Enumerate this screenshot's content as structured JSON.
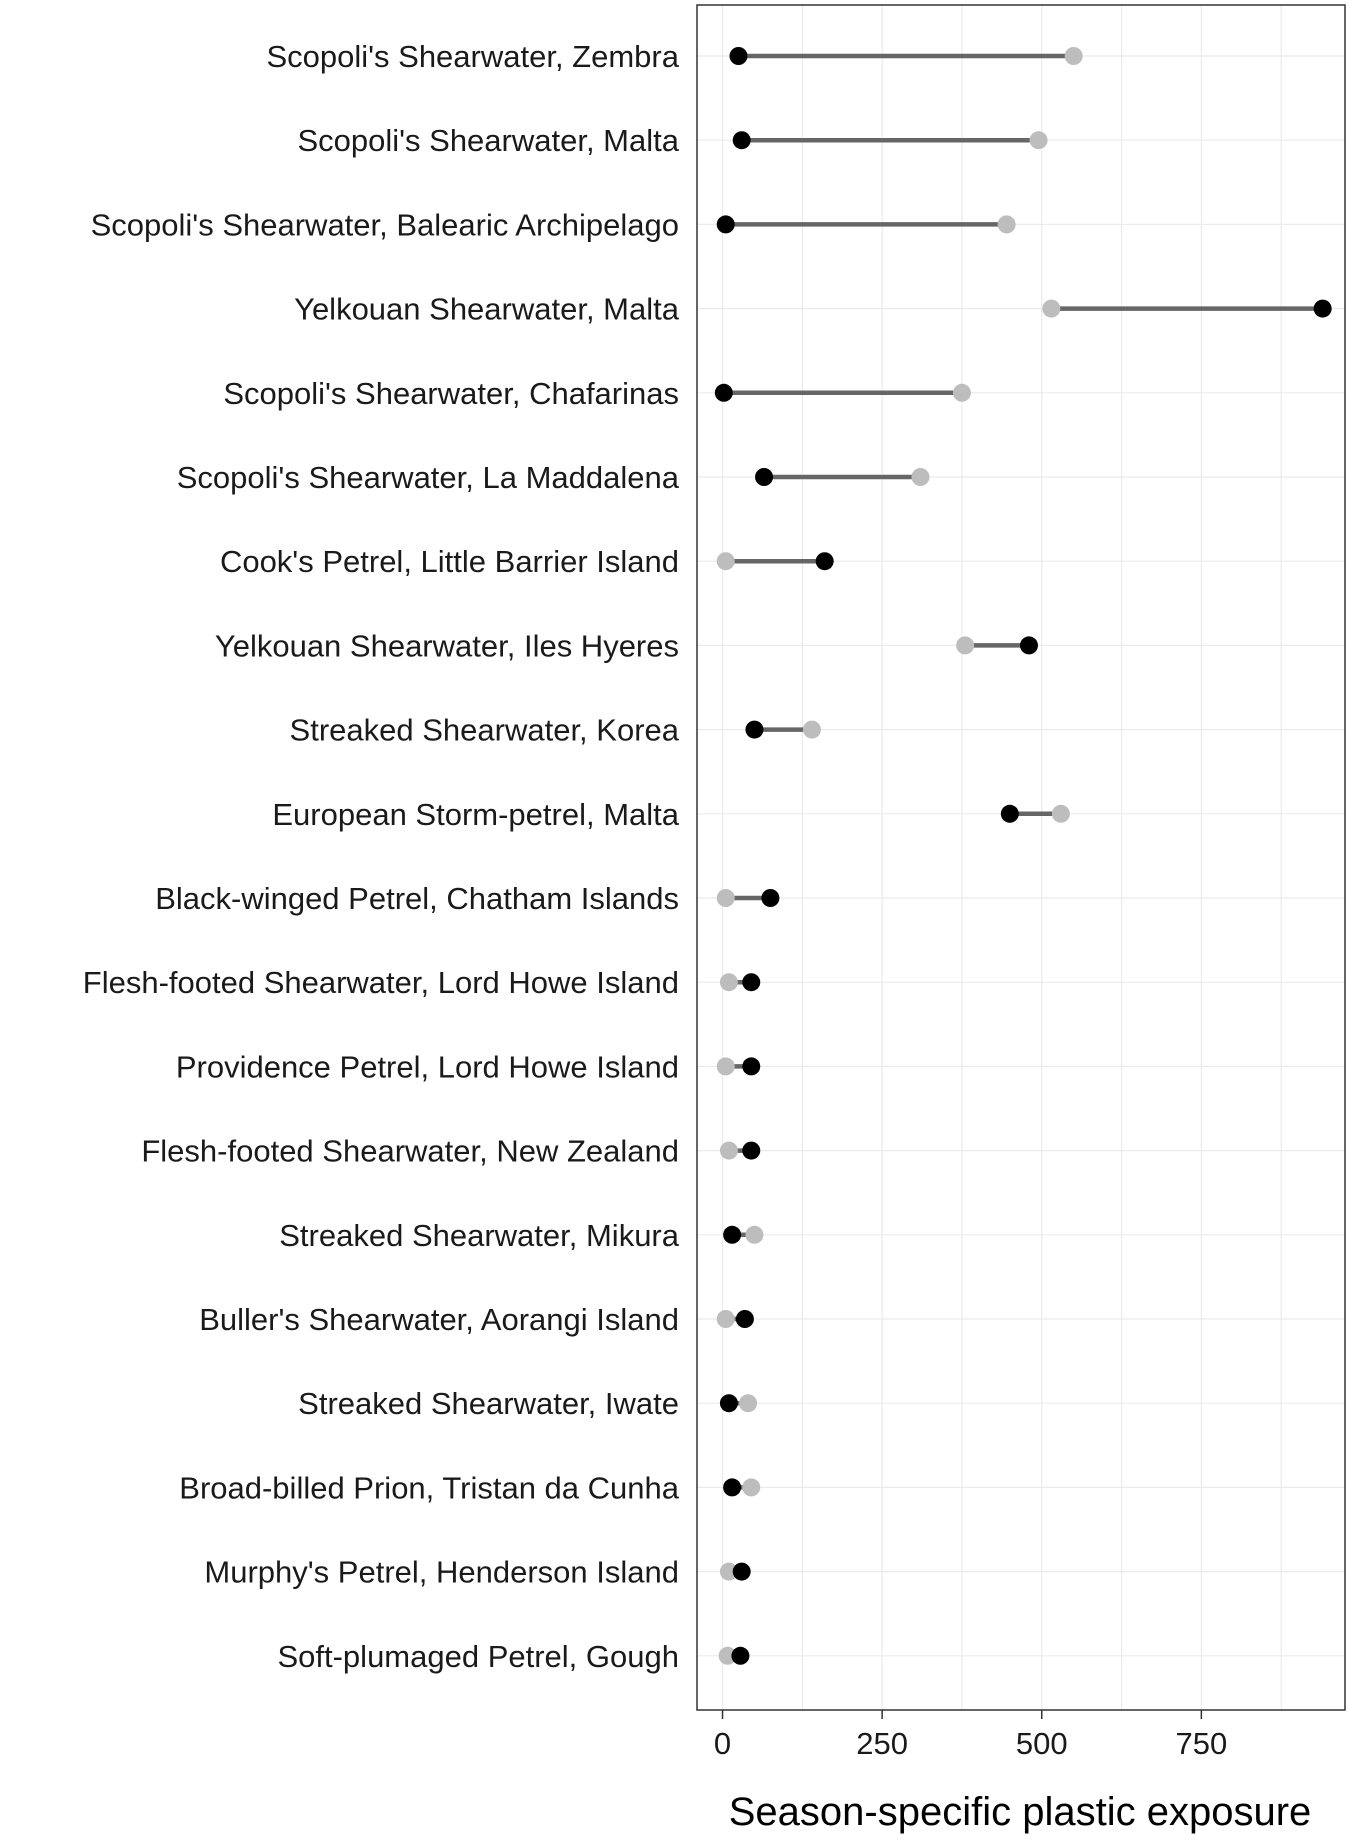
{
  "chart_data": {
    "type": "dumbbell",
    "title": "",
    "xlabel": "Season-specific plastic exposure",
    "ylabel": "",
    "xlim": [
      -40,
      975
    ],
    "x_ticks": [
      0,
      250,
      500,
      750
    ],
    "x_tick_labels": [
      "0",
      "250",
      "500",
      "750"
    ],
    "grid": true,
    "colors": {
      "dark_point": "#000000",
      "light_point": "#bdbdbd",
      "segment": "#666666",
      "grid": "#ebebeb",
      "panel_border": "#333333"
    },
    "categories": [
      "Scopoli's Shearwater, Zembra",
      "Scopoli's Shearwater, Malta",
      "Scopoli's Shearwater, Balearic Archipelago",
      "Yelkouan Shearwater, Malta",
      "Scopoli's Shearwater, Chafarinas",
      "Scopoli's Shearwater, La Maddalena",
      "Cook's Petrel, Little Barrier Island",
      "Yelkouan Shearwater, Iles Hyeres",
      "Streaked Shearwater, Korea",
      "European Storm-petrel, Malta",
      "Black-winged Petrel, Chatham Islands",
      "Flesh-footed Shearwater, Lord Howe Island",
      "Providence Petrel, Lord Howe Island",
      "Flesh-footed Shearwater, New Zealand",
      "Streaked Shearwater, Mikura",
      "Buller's Shearwater, Aorangi Island",
      "Streaked Shearwater, Iwate",
      "Broad-billed Prion, Tristan da Cunha",
      "Murphy's Petrel, Henderson Island",
      "Soft-plumaged Petrel, Gough"
    ],
    "series": [
      {
        "color": "#000000",
        "values": [
          25,
          30,
          5,
          940,
          2,
          65,
          160,
          480,
          50,
          450,
          75,
          45,
          45,
          45,
          15,
          35,
          10,
          15,
          30,
          28
        ]
      },
      {
        "color": "#bdbdbd",
        "values": [
          550,
          495,
          445,
          515,
          375,
          310,
          5,
          380,
          140,
          530,
          5,
          10,
          5,
          10,
          50,
          5,
          40,
          45,
          10,
          8
        ]
      }
    ]
  }
}
